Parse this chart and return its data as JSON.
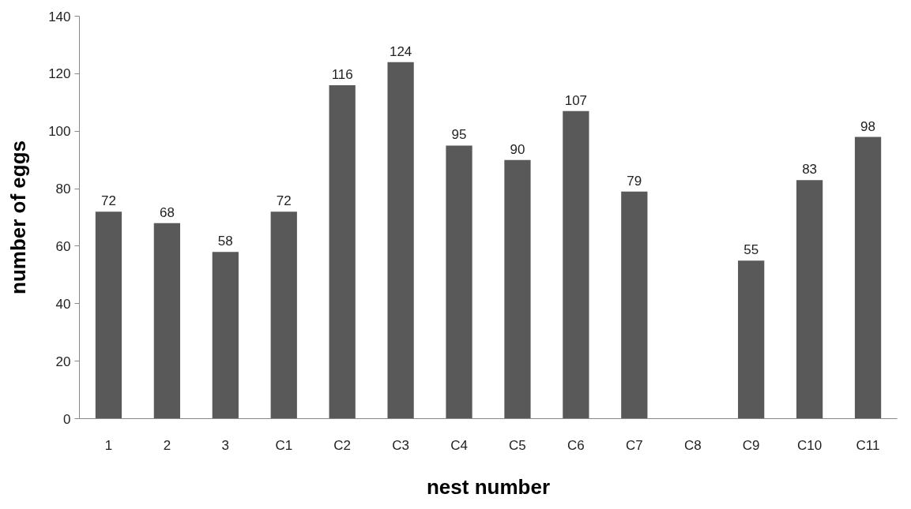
{
  "chart_data": {
    "type": "bar",
    "xlabel": "nest number",
    "ylabel": "number of eggs",
    "categories": [
      "1",
      "2",
      "3",
      "C1",
      "C2",
      "C3",
      "C4",
      "C5",
      "C6",
      "C7",
      "C8",
      "C9",
      "C10",
      "C11"
    ],
    "values": [
      72,
      68,
      58,
      72,
      116,
      124,
      95,
      90,
      107,
      79,
      null,
      55,
      83,
      98
    ],
    "color": "#595959",
    "ylim": [
      0,
      140
    ],
    "yticks": [
      0,
      20,
      40,
      60,
      80,
      100,
      120,
      140
    ],
    "grid": false,
    "data_labels": true
  }
}
